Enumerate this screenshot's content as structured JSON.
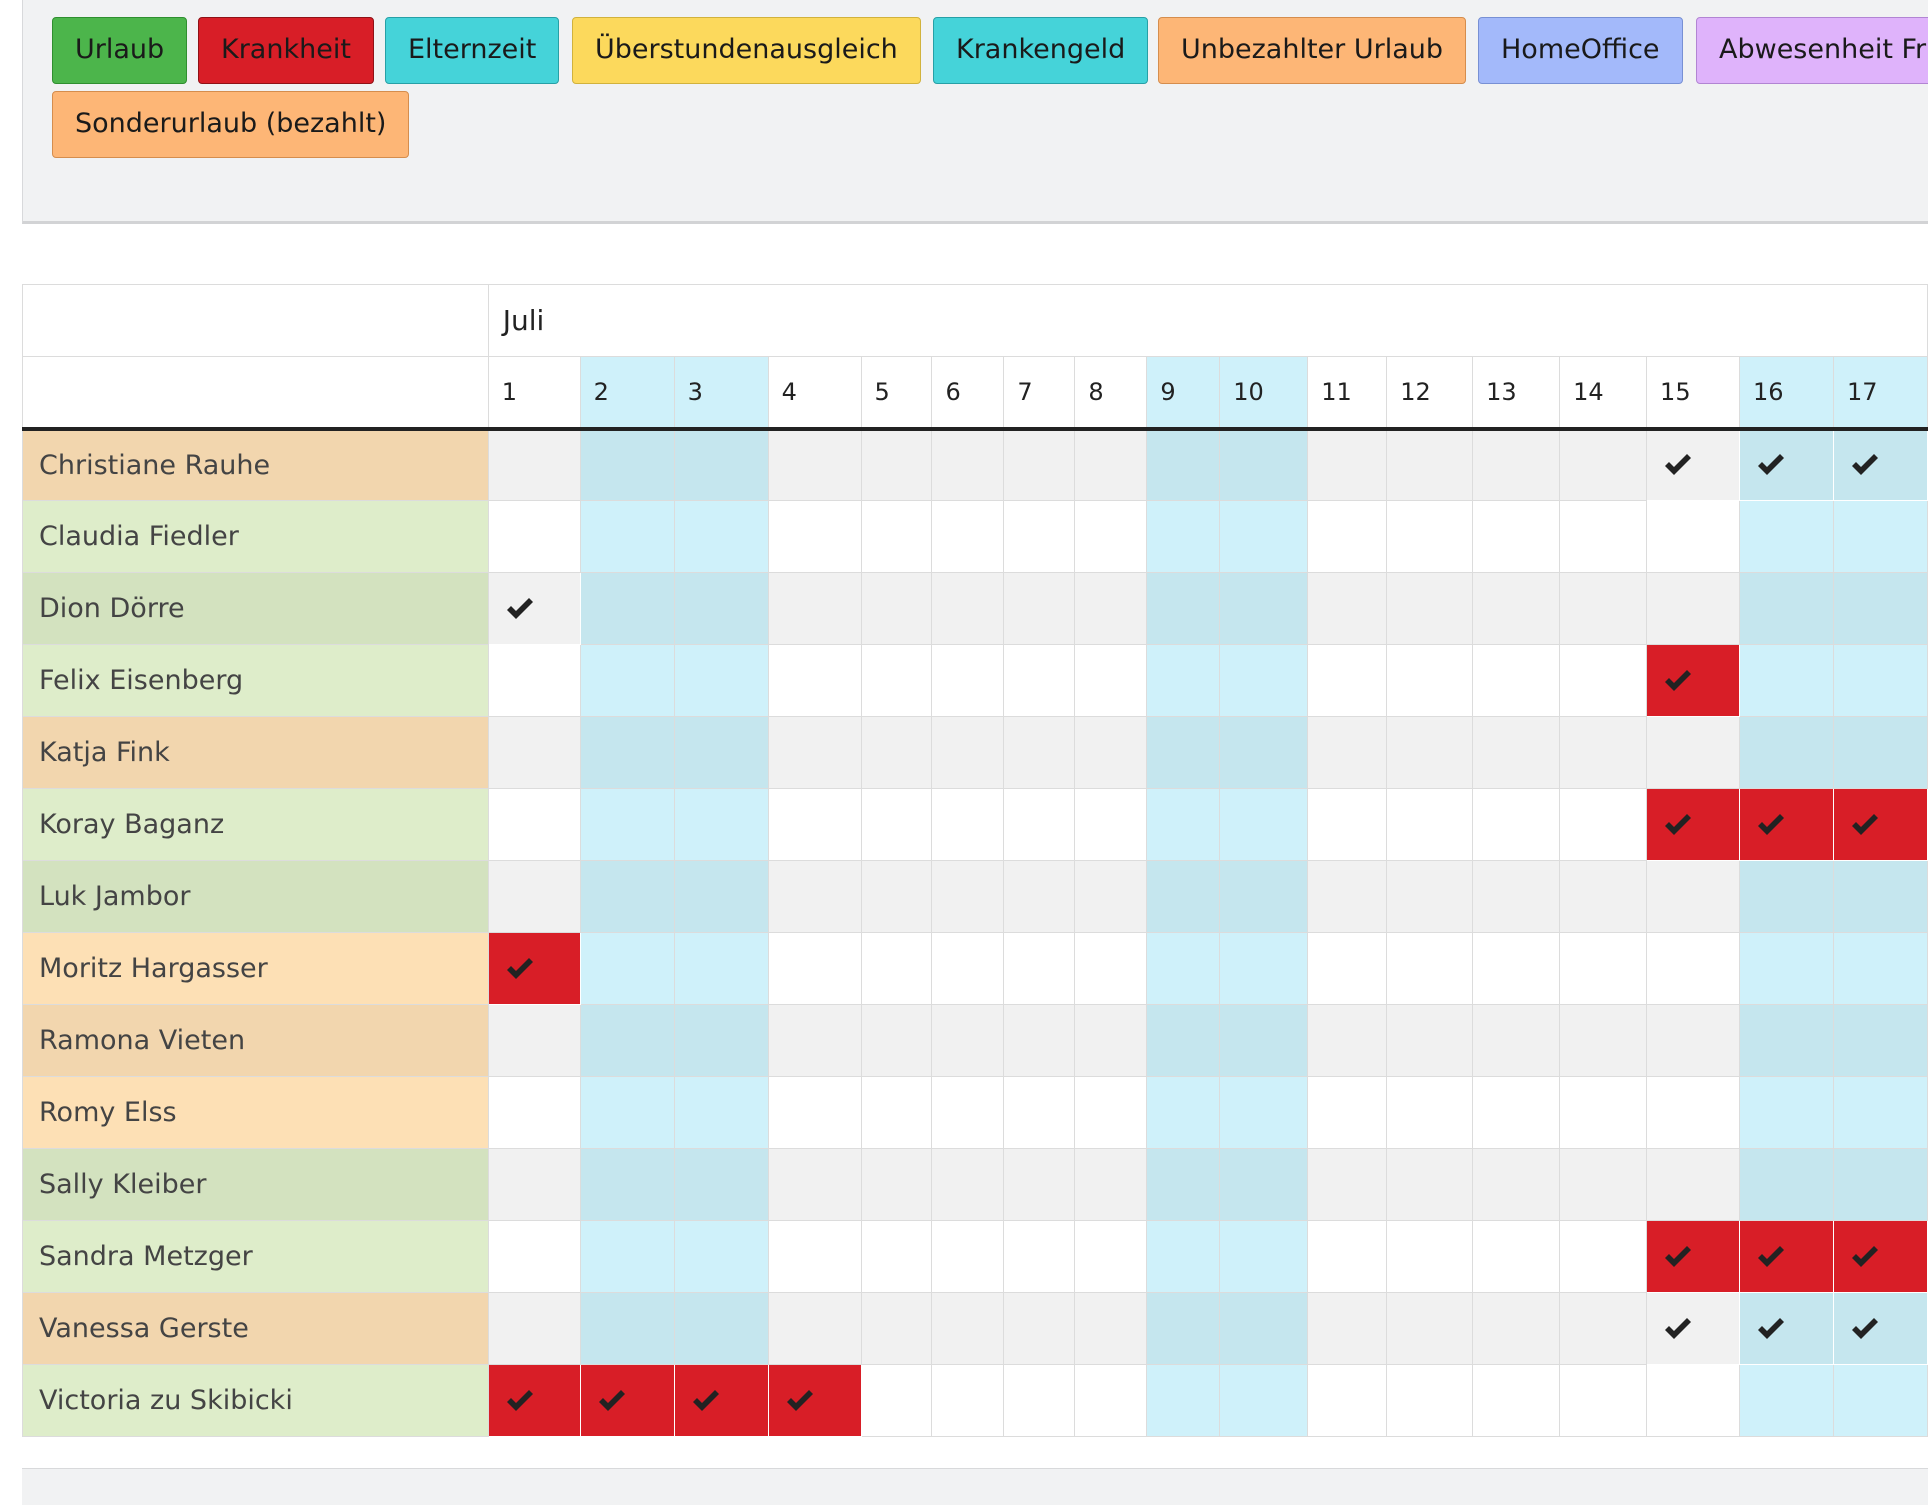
{
  "legend": [
    {
      "label": "Urlaub",
      "color": "#4cb54b",
      "border": "#2f8f2f"
    },
    {
      "label": "Krankheit",
      "color": "#d81e27",
      "border": "#8f1116"
    },
    {
      "label": "Elternzeit",
      "color": "#45d3d9",
      "border": "#27a0a6"
    },
    {
      "label": "Überstundenausgleich",
      "color": "#fcd95c",
      "border": "#d1b23c"
    },
    {
      "label": "Krankengeld",
      "color": "#45d3d9",
      "border": "#27a0a6"
    },
    {
      "label": "Unbezahlter Urlaub",
      "color": "#fdb676",
      "border": "#d58d4d"
    },
    {
      "label": "HomeOffice",
      "color": "#a3b9fa",
      "border": "#7890d4"
    },
    {
      "label": "Abwesenheit Fr",
      "color": "#dfb3fb",
      "border": "#b285d3"
    },
    {
      "label": "Sonderurlaub (bezahlt)",
      "color": "#fdb676",
      "border": "#d58d4d"
    }
  ],
  "calendar": {
    "month": "Juli",
    "days": [
      "1",
      "2",
      "3",
      "4",
      "5",
      "6",
      "7",
      "8",
      "9",
      "10",
      "11",
      "12",
      "13",
      "14",
      "15",
      "16",
      "17"
    ],
    "weekend_days": [
      "2",
      "3",
      "9",
      "10",
      "16",
      "17"
    ],
    "absence_type": "Krankheit",
    "employees": [
      {
        "name": "Christiane Rauhe",
        "color": "#f2d6ae",
        "absent": [
          "15",
          "16",
          "17"
        ]
      },
      {
        "name": "Claudia Fiedler",
        "color": "#deedca",
        "absent": []
      },
      {
        "name": "Dion Dörre",
        "color": "#d3e2bf",
        "absent": [
          "1"
        ]
      },
      {
        "name": "Felix Eisenberg",
        "color": "#deedca",
        "absent": [
          "15"
        ]
      },
      {
        "name": "Katja Fink",
        "color": "#f2d6ae",
        "absent": []
      },
      {
        "name": "Koray Baganz",
        "color": "#deedca",
        "absent": [
          "15",
          "16",
          "17"
        ]
      },
      {
        "name": "Luk Jambor",
        "color": "#d3e2bf",
        "absent": []
      },
      {
        "name": "Moritz Hargasser",
        "color": "#fde0b5",
        "absent": [
          "1"
        ]
      },
      {
        "name": "Ramona Vieten",
        "color": "#f2d6ae",
        "absent": []
      },
      {
        "name": "Romy Elss",
        "color": "#fde0b5",
        "absent": []
      },
      {
        "name": "Sally Kleiber",
        "color": "#d3e2bf",
        "absent": []
      },
      {
        "name": "Sandra Metzger",
        "color": "#deedca",
        "absent": [
          "15",
          "16",
          "17"
        ]
      },
      {
        "name": "Vanessa Gerste",
        "color": "#f2d6ae",
        "absent": [
          "15",
          "16",
          "17"
        ]
      },
      {
        "name": "Victoria zu Skibicki",
        "color": "#deedca",
        "absent": [
          "1",
          "2",
          "3",
          "4"
        ]
      }
    ]
  }
}
